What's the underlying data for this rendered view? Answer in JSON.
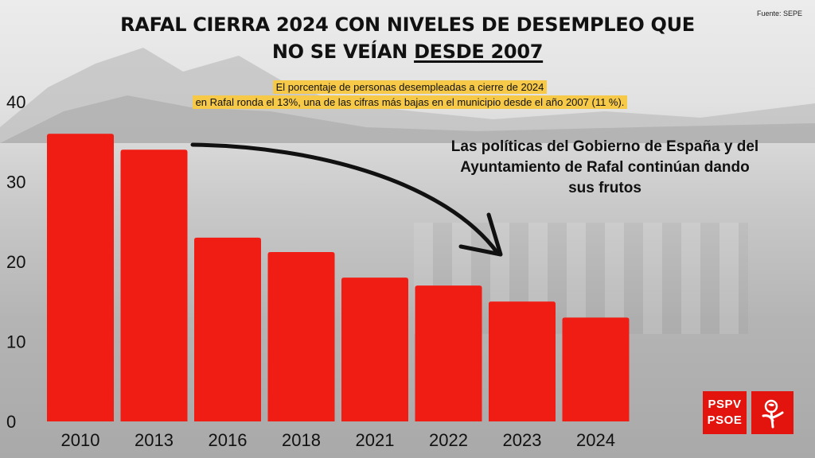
{
  "title": {
    "line1": "RAFAL CIERRA 2024 CON NIVELES DE DESEMPLEO QUE",
    "line2_prefix": "NO SE VEÍAN ",
    "line2_underlined": "DESDE 2007"
  },
  "source": "Fuente: SEPE",
  "subtitle": {
    "line1": "El porcentaje de personas desempleadas a cierre de 2024",
    "line2": "en Rafal ronda el 13%, una de las cifras más bajas en el municipio desde el año 2007 (11 %)."
  },
  "annotation": {
    "line1": "Las políticas del Gobierno de España y del",
    "line2": "Ayuntamiento de Rafal continúan dando",
    "line3": "sus frutos"
  },
  "logo": {
    "line1": "PSPV",
    "line2": "PSOE",
    "icon": "rose-icon"
  },
  "colors": {
    "bar": "#f01d14",
    "highlight": "#f7c948",
    "brand": "#e3140e"
  },
  "chart_data": {
    "type": "bar",
    "categories": [
      "2010",
      "2013",
      "2016",
      "2018",
      "2021",
      "2022",
      "2023",
      "2024"
    ],
    "values": [
      36,
      34,
      23,
      21.2,
      18,
      17,
      15,
      13
    ],
    "yticks": [
      0,
      10,
      20,
      30,
      40
    ],
    "ylim": [
      0,
      40
    ],
    "grid": false,
    "legend": "none"
  }
}
